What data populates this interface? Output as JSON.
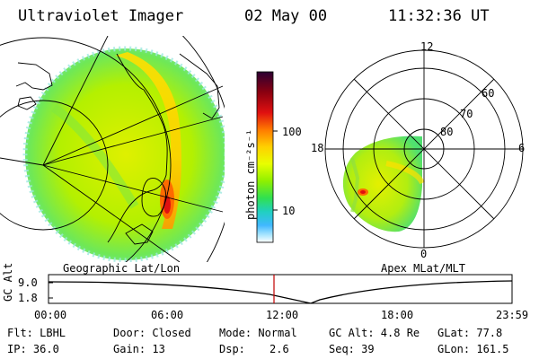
{
  "header": {
    "instrument": "Ultraviolet Imager",
    "date": "02 May 00",
    "time": "11:32:36 UT"
  },
  "colorbar": {
    "unit_label": "photon cm⁻²s⁻¹",
    "ticks": [
      {
        "label": "100",
        "value": 100
      },
      {
        "label": "10",
        "value": 10
      }
    ],
    "colors": [
      "#2b0033",
      "#8b0010",
      "#e01010",
      "#ff7a00",
      "#ffd000",
      "#e8ff00",
      "#90f000",
      "#30e050",
      "#20d0c0",
      "#40b8ff",
      "#b0e8ff",
      "#ffffff"
    ]
  },
  "panels": {
    "left_caption": "Geographic Lat/Lon",
    "right_caption": "Apex MLat/MLT"
  },
  "polar_plot": {
    "mlt_labels": [
      "12",
      "18",
      "6",
      "0"
    ],
    "lat_labels": [
      "60",
      "70",
      "80"
    ]
  },
  "altitude_plot": {
    "ylabel": "GC Alt",
    "yticks": [
      "9.0",
      "1.8"
    ],
    "xticks": [
      "00:00",
      "06:00",
      "12:00",
      "18:00",
      "23:59"
    ],
    "marker_color": "#c00000"
  },
  "info": {
    "flt": "Flt: LBHL",
    "door": "Door: Closed",
    "mode": "Mode: Normal",
    "gc_alt": "GC Alt: 4.8 Re",
    "glat": "GLat: 77.8",
    "ip": "IP: 36.0",
    "gain": "Gain: 13",
    "dsp_label": "Dsp:",
    "dsp_value": "2.6",
    "seq": "Seq: 39",
    "glon": "GLon: 161.5"
  }
}
